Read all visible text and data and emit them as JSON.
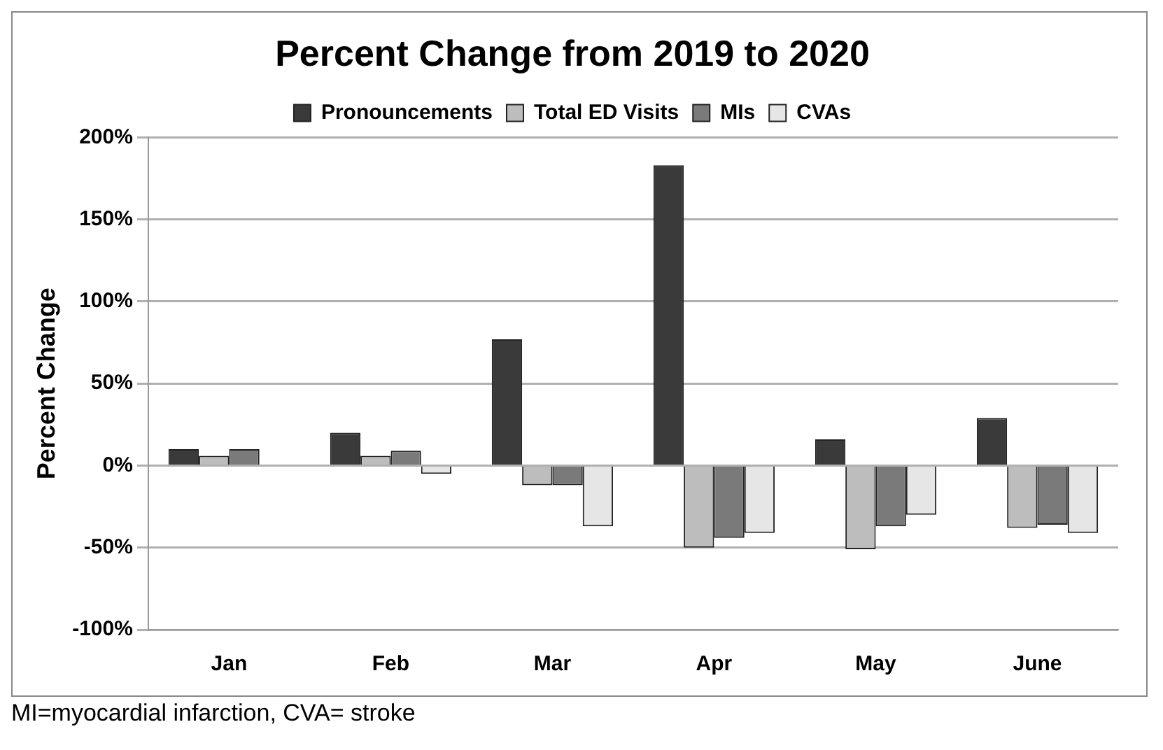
{
  "chart_data": {
    "type": "bar",
    "title": "Percent Change from 2019 to 2020",
    "ylabel": "Percent Change",
    "categories": [
      "Jan",
      "Feb",
      "Mar",
      "Apr",
      "May",
      "June"
    ],
    "series": [
      {
        "name": "Pronouncements",
        "color": "#3a3a3a",
        "values": [
          10,
          20,
          77,
          183,
          16,
          29
        ]
      },
      {
        "name": "Total ED Visits",
        "color": "#bdbdbd",
        "values": [
          6,
          6,
          -12,
          -50,
          -51,
          -38
        ]
      },
      {
        "name": "MIs",
        "color": "#7a7a7a",
        "values": [
          10,
          9,
          -12,
          -44,
          -37,
          -36
        ]
      },
      {
        "name": "CVAs",
        "color": "#e6e6e6",
        "values": [
          0,
          -5,
          -37,
          -41,
          -30,
          -41
        ]
      }
    ],
    "ylim": [
      -100,
      200
    ],
    "yticks": [
      {
        "value": -100,
        "label": "-100%"
      },
      {
        "value": -50,
        "label": "-50%"
      },
      {
        "value": 0,
        "label": "0%"
      },
      {
        "value": 50,
        "label": "50%"
      },
      {
        "value": 100,
        "label": "100%"
      },
      {
        "value": 150,
        "label": "150%"
      },
      {
        "value": 200,
        "label": "200%"
      }
    ],
    "grid": "y",
    "legend": "top",
    "annotations": [
      "MI=myocardial infarction, CVA= stroke"
    ]
  }
}
